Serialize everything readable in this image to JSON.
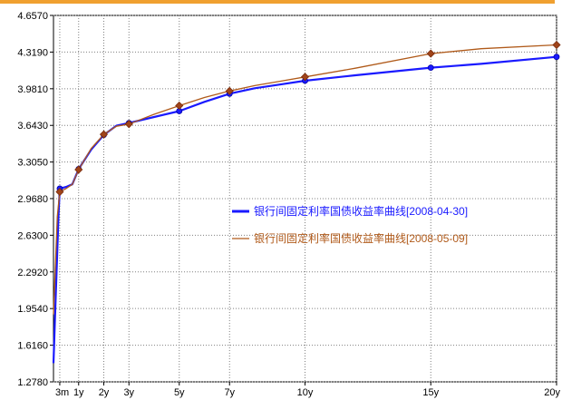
{
  "chart_data": {
    "type": "line",
    "title": "",
    "xlabel": "",
    "ylabel": "",
    "ylim": [
      1.278,
      4.657
    ],
    "y_ticks": [
      "4.6570",
      "4.3190",
      "3.9810",
      "3.6430",
      "3.3050",
      "2.9680",
      "2.6300",
      "2.2920",
      "1.9540",
      "1.6160",
      "1.2780"
    ],
    "x_ticks": [
      "3m",
      "1y",
      "2y",
      "3y",
      "5y",
      "7y",
      "10y",
      "15y",
      "20y"
    ],
    "x_tick_years": [
      0.25,
      1,
      2,
      3,
      5,
      7,
      10,
      15,
      20
    ],
    "xlim": [
      0,
      20
    ],
    "grid": true,
    "legend_placement": "center-right",
    "series": [
      {
        "name": "银行间固定利率国债收益率曲线[2008-04-30]",
        "color": "#1a1aff",
        "marker": "circle",
        "x": [
          0,
          0.08,
          0.2,
          0.25,
          0.5,
          0.75,
          1,
          1.5,
          2,
          2.5,
          3,
          4,
          5,
          6,
          7,
          8,
          9,
          10,
          12,
          15,
          17,
          20
        ],
        "y": [
          1.45,
          2.0,
          2.8,
          3.06,
          3.075,
          3.1,
          3.24,
          3.42,
          3.555,
          3.64,
          3.665,
          3.72,
          3.775,
          3.86,
          3.935,
          3.985,
          4.02,
          4.055,
          4.105,
          4.175,
          4.21,
          4.275
        ]
      },
      {
        "name": "银行间固定利率国债收益率曲线[2008-05-09]",
        "color": "#b05a1a",
        "marker": "diamond",
        "x": [
          0,
          0.15,
          0.25,
          0.5,
          0.75,
          1,
          1.5,
          2,
          2.5,
          3,
          4,
          5,
          6,
          7,
          8,
          9,
          10,
          12,
          15,
          17,
          20
        ],
        "y": [
          1.9,
          2.8,
          3.03,
          3.06,
          3.1,
          3.235,
          3.43,
          3.56,
          3.635,
          3.655,
          3.745,
          3.825,
          3.9,
          3.96,
          4.01,
          4.05,
          4.09,
          4.17,
          4.305,
          4.35,
          4.385
        ]
      }
    ],
    "marker_points": [
      {
        "series": 0,
        "x": [
          0.25,
          1,
          2,
          3,
          5,
          7,
          10,
          15,
          20
        ]
      },
      {
        "series": 1,
        "x": [
          0.25,
          1,
          2,
          3,
          5,
          7,
          10,
          15,
          20
        ]
      }
    ]
  }
}
